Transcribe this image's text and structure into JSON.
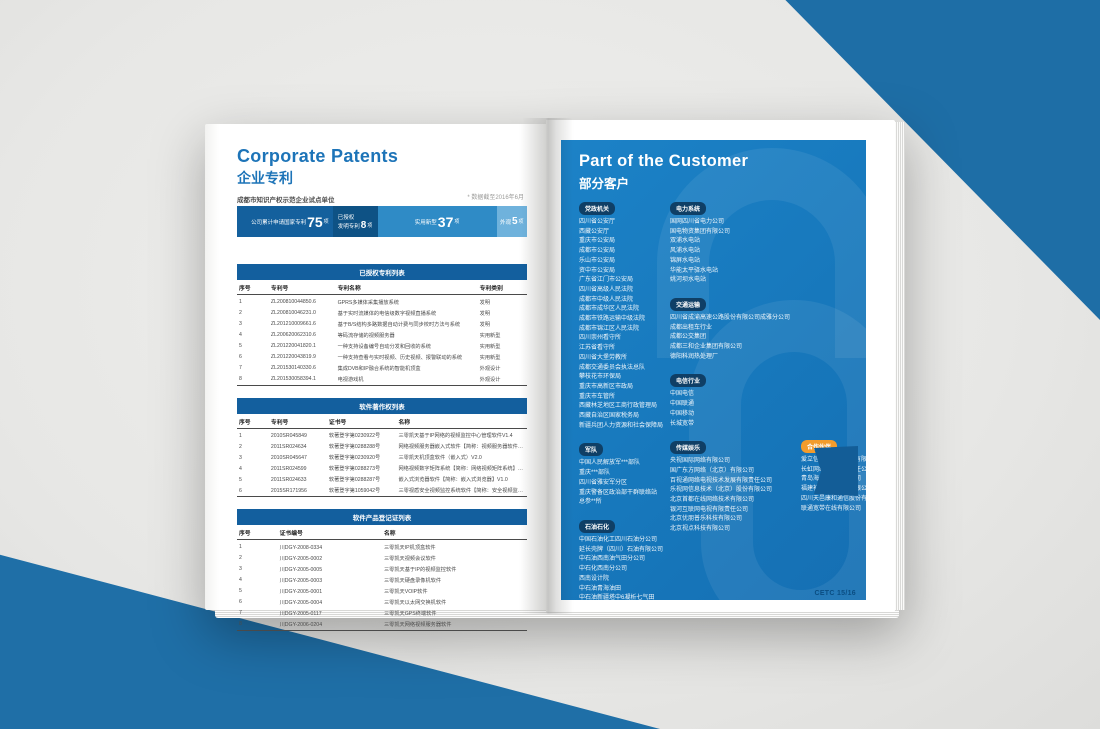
{
  "scene": {
    "background_gray": "#ebebe9",
    "accent_blue": "#1e6ea6",
    "panel_blue": "#1778bc",
    "badge_navy": "#0f3f66",
    "badge_orange": "#f39c2c"
  },
  "left_page": {
    "title_en": "Corporate Patents",
    "title_cn": "企业专利",
    "subtitle": "成都市知识产权示范企业试点单位",
    "note": "* 数据截至2016年6月",
    "stats": [
      {
        "label": "公司累计申请国家专利",
        "big": "75",
        "unit": "项"
      },
      {
        "label": "已授权",
        "label2": "发明专利",
        "big": "8",
        "unit": "项"
      },
      {
        "label": "实用新型",
        "big": "37",
        "unit": "项"
      },
      {
        "label": "外观",
        "big": "5",
        "unit": "项"
      }
    ],
    "tables": [
      {
        "title": "已授权专利列表",
        "columns": [
          "序号",
          "专利号",
          "专利名称",
          "专利类别"
        ],
        "widths": [
          "11%",
          "23%",
          "49%",
          "17%"
        ],
        "rows": [
          [
            "1",
            "ZL200810044850.6",
            "GPRS多媒体采集播放系统",
            "发明"
          ],
          [
            "2",
            "ZL200810046231.0",
            "基于实时流媒体的电信级数字视频直播系统",
            "发明"
          ],
          [
            "3",
            "ZL201210009661.6",
            "基于B/S结构多路数据自动计费与同步校时方法与系统",
            "发明"
          ],
          [
            "4",
            "ZL200620062310.6",
            "等码流存储的视频服务器",
            "实用新型"
          ],
          [
            "5",
            "ZL201220041820.1",
            "一种支持设备编号自动分发和回收的系统",
            "实用新型"
          ],
          [
            "6",
            "ZL201220043819.9",
            "一种支持查看与实时视频、历史视频、报警联动的系统",
            "实用新型"
          ],
          [
            "7",
            "ZL201530140330.6",
            "集成DVB和IP融合系统的智能机顶盒",
            "外观设计"
          ],
          [
            "8",
            "ZL201530058394.1",
            "电视游戏机",
            "外观设计"
          ]
        ]
      },
      {
        "title": "软件著作权列表",
        "columns": [
          "序号",
          "专利号",
          "证书号",
          "名称"
        ],
        "widths": [
          "11%",
          "20%",
          "24%",
          "45%"
        ],
        "rows": [
          [
            "1",
            "2010SR045849",
            "软著登字第0230922号",
            "三零凯天基于IP网络的视频监控中心管理软件V1.4"
          ],
          [
            "2",
            "2011SR024634",
            "软著登字第0288288号",
            "网络视频服务器嵌入式软件【简称：视频服务器软件】V1.0"
          ],
          [
            "3",
            "2010SR045647",
            "软著登字第0230920号",
            "三零凯天机顶盒软件（嵌入式）V2.0"
          ],
          [
            "4",
            "2011SR024599",
            "软著登字第0288273号",
            "网络视频数字矩阵系统【简称：网络视频矩阵系统】V1.0"
          ],
          [
            "5",
            "2011SR024633",
            "软著登字第0288287号",
            "嵌入式浏览器软件【简称：嵌入式浏览器】V1.0"
          ],
          [
            "6",
            "2015SR171956",
            "软著登字第1059042号",
            "三零视盾安全视频监控系统软件【简称：安全视频监控软件】V2.0"
          ]
        ]
      },
      {
        "title": "软件产品登记证列表",
        "columns": [
          "序号",
          "证书编号",
          "名称"
        ],
        "widths": [
          "14%",
          "36%",
          "50%"
        ],
        "rows": [
          [
            "1",
            "川DGY-2008-0334",
            "三零凯天IP机顶盒软件"
          ],
          [
            "2",
            "川DGY-2005-0002",
            "三零凯天视频会议软件"
          ],
          [
            "3",
            "川DGY-2005-0005",
            "三零凯天基于IP的视频监控软件"
          ],
          [
            "4",
            "川DGY-2005-0003",
            "三零凯天硬盘录像机软件"
          ],
          [
            "5",
            "川DGY-2005-0001",
            "三零凯天VOIP软件"
          ],
          [
            "6",
            "川DGY-2005-0004",
            "三零凯天以太网交换机软件"
          ],
          [
            "7",
            "川DGY-2005-0117",
            "三零凯天GPS终端软件"
          ],
          [
            "8",
            "川DGY-2006-0204",
            "三零凯天网络视频服务器软件"
          ]
        ]
      }
    ]
  },
  "right_page": {
    "title_en": "Part of the Customer",
    "title_cn": "部分客户",
    "footer": "CETC 15/16",
    "columns": [
      [
        {
          "badge": "党政机关",
          "accent": "navy",
          "items": [
            "四川省公安厅",
            "西藏公安厅",
            "重庆市公安局",
            "成都市公安局",
            "乐山市公安局",
            "资中市公安局",
            "广东省江门市公安局",
            "四川省高级人民法院",
            "成都市中级人民法院",
            "成都市成华区人民法院",
            "成都市铁路运输中级法院",
            "成都市锦江区人民法院",
            "四川崇州看守所",
            "江苏省看守所",
            "四川省大堡劳教所",
            "成都交通委员会执法总队",
            "攀枝花市环保局",
            "重庆市高新区市政局",
            "重庆市车管所",
            "西藏林芝地区工商行政管理局",
            "西藏自治区国家税务局",
            "新疆兵团人力资源和社会保障局"
          ]
        },
        {
          "badge": "军队",
          "accent": "navy",
          "items": [
            "中国人民解放军***部队",
            "重庆***部队",
            "四川省雅安军分区",
            "重庆警备区政治部干群联络站",
            "总参**所"
          ]
        },
        {
          "badge": "石油石化",
          "accent": "navy",
          "items": [
            "中国石油化工四川石油分公司",
            "延长壳牌（四川）石油有限公司",
            "中石油西南油气田分公司",
            "中石化西南分公司",
            "西南设计院",
            "中石油青海油田",
            "中石油新疆塔中6凝析七气田",
            "中石油吉林油田分公司",
            "西南油气田分公司重庆气矿"
          ]
        }
      ],
      [
        {
          "badge": "电力系统",
          "accent": "navy",
          "items": [
            "国网四川省电力公司",
            "国电物资集团有限公司",
            "双浦水电站",
            "风浦水电站",
            "锦屏水电站",
            "华能太平驿水电站",
            "姚河坝水电站"
          ]
        },
        {
          "badge": "交通运输",
          "accent": "navy",
          "items": [
            "四川省成渝高速公路股份有限公司成雅分公司",
            "成都出租车行业",
            "成都公交集团",
            "成都三和企业集团有限公司",
            "德阳科润热处理厂"
          ]
        },
        {
          "badge": "电信行业",
          "accent": "navy",
          "items": [
            "中国电信",
            "中国联通",
            "中国移动",
            "长城宽带"
          ]
        },
        {
          "badge": "传媒娱乐",
          "accent": "navy",
          "items": [
            "央视国际网络有限公司",
            "国广东方网络（北京）有限公司",
            "百视通网络电视技术发展有限责任公司",
            "乐视网信息技术（北京）股份有限公司",
            "北京首都在线网络技术有限公司",
            "银河互联网电视有限责任公司",
            "北京优朋普乐科技有限公司",
            "北京视点科技有限公司"
          ]
        }
      ],
      [
        {
          "badge": "合作伙伴",
          "accent": "orange",
          "items": [
            "爱立信（中国）通信有限公司",
            "长虹网络科技有限责任公司",
            "青岛海尔电子有限公司",
            "福建神州电子股份有限公司",
            "四川天邑康和通信股份有限公司",
            "联通宽带在线有限公司"
          ]
        }
      ]
    ]
  }
}
